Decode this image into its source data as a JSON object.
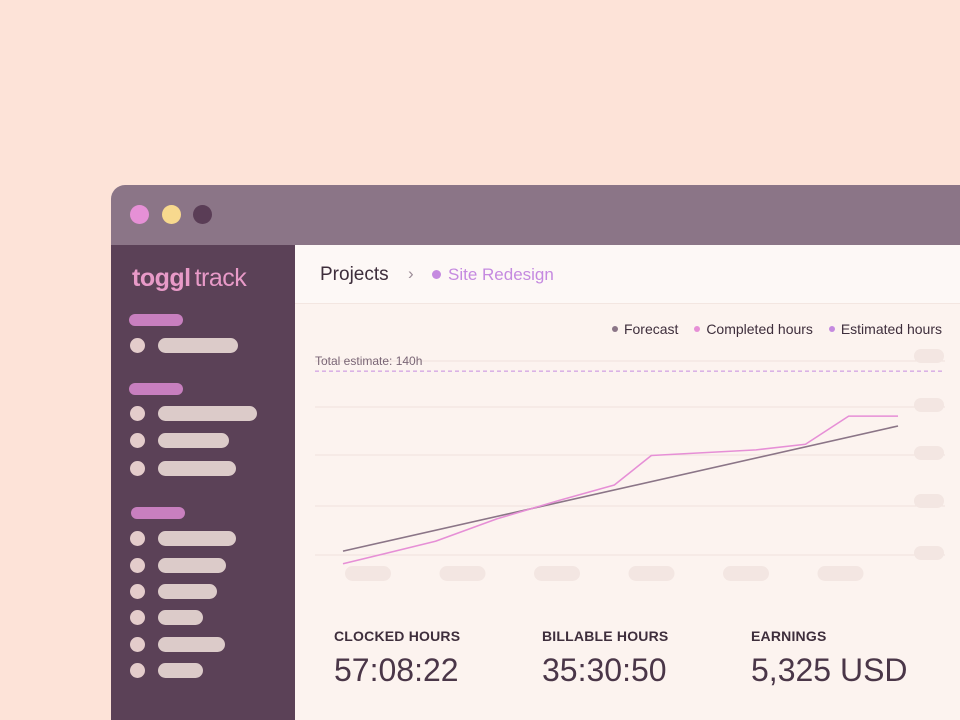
{
  "window": {
    "traffic_lights": [
      "#e690d6",
      "#f7d98e",
      "#5a3d56"
    ]
  },
  "sidebar": {
    "logo_bold": "toggl",
    "logo_light": "track",
    "groups": [
      {
        "items": 1
      },
      {
        "items": 3
      },
      {
        "items": 6
      }
    ]
  },
  "breadcrumb": {
    "root": "Projects",
    "separator": "›",
    "current": "Site Redesign"
  },
  "chart_data": {
    "type": "line",
    "legend": [
      {
        "name": "Forecast",
        "color": "#8b7587"
      },
      {
        "name": "Completed hours",
        "color": "#e68fd6"
      },
      {
        "name": "Estimated hours",
        "color": "#c58ae0"
      }
    ],
    "annotation": "Total estimate: 140h",
    "estimate_value": 140,
    "ylim": [
      0,
      160
    ],
    "x": [
      0,
      1,
      2,
      3,
      4,
      5,
      6,
      7,
      8,
      9
    ],
    "series": [
      {
        "name": "Forecast",
        "color": "#8b7587",
        "x": [
          0,
          9
        ],
        "values": [
          12,
          101
        ]
      },
      {
        "name": "Completed hours",
        "color": "#e68fd6",
        "x": [
          0,
          1.5,
          2.5,
          3.5,
          4.4,
          5,
          6.7,
          7.5,
          8.2,
          9
        ],
        "values": [
          3,
          19,
          35,
          48,
          59,
          80,
          84,
          88,
          108,
          108
        ]
      }
    ],
    "grid": true,
    "legend_position": "top-right"
  },
  "stats": [
    {
      "label": "CLOCKED HOURS",
      "value": "57:08:22"
    },
    {
      "label": "BILLABLE HOURS",
      "value": "35:30:50"
    },
    {
      "label": "EARNINGS",
      "value": "5,325 USD"
    }
  ]
}
